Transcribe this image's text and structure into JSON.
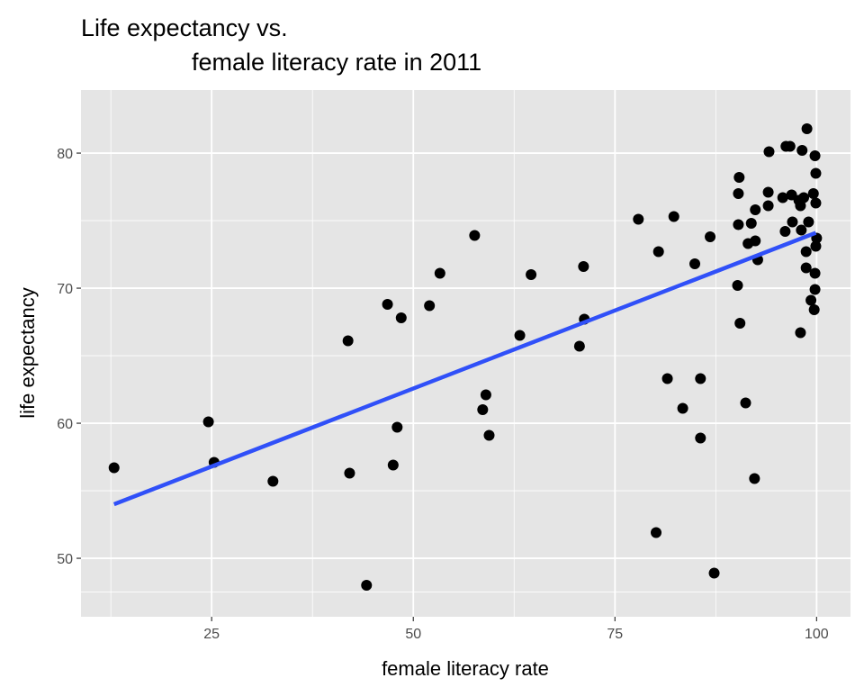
{
  "chart_data": {
    "type": "scatter",
    "title_line1": "Life expectancy vs.",
    "title_line2": "female literacy rate in 2011",
    "xlabel": "female literacy rate",
    "ylabel": "life expectancy",
    "xlim": [
      8.8,
      104.2
    ],
    "ylim": [
      45.67,
      84.67
    ],
    "xticks": [
      25,
      50,
      75,
      100
    ],
    "yticks": [
      50,
      60,
      70,
      80
    ],
    "xminor": [
      12.5,
      37.5,
      62.5,
      87.5
    ],
    "yminor": [
      47.5,
      55,
      65,
      75
    ],
    "grid": true,
    "colors": {
      "panel": "#e5e5e5",
      "grid": "#ffffff",
      "point": "#000000",
      "fit": "#3050f8"
    },
    "fit": {
      "type": "linear",
      "x": [
        12.9,
        99.9
      ],
      "y": [
        54.0,
        74.1
      ]
    },
    "points": [
      [
        12.9,
        56.7
      ],
      [
        24.6,
        60.1
      ],
      [
        25.3,
        57.1
      ],
      [
        32.6,
        55.7
      ],
      [
        41.9,
        66.1
      ],
      [
        42.1,
        56.3
      ],
      [
        44.2,
        48.0
      ],
      [
        46.8,
        68.8
      ],
      [
        47.5,
        56.9
      ],
      [
        48.0,
        59.7
      ],
      [
        48.5,
        67.8
      ],
      [
        52.0,
        68.7
      ],
      [
        53.3,
        71.1
      ],
      [
        57.6,
        73.9
      ],
      [
        58.6,
        61.0
      ],
      [
        59.0,
        62.1
      ],
      [
        59.4,
        59.1
      ],
      [
        63.2,
        66.5
      ],
      [
        64.6,
        71.0
      ],
      [
        70.6,
        65.7
      ],
      [
        71.1,
        71.6
      ],
      [
        71.2,
        67.7
      ],
      [
        77.9,
        75.1
      ],
      [
        80.4,
        72.7
      ],
      [
        80.1,
        51.9
      ],
      [
        81.5,
        63.3
      ],
      [
        82.3,
        75.3
      ],
      [
        83.4,
        61.1
      ],
      [
        84.9,
        71.8
      ],
      [
        85.6,
        63.3
      ],
      [
        85.6,
        58.9
      ],
      [
        86.8,
        73.8
      ],
      [
        87.3,
        48.9
      ],
      [
        91.2,
        61.5
      ],
      [
        92.3,
        55.9
      ],
      [
        98.8,
        81.8
      ],
      [
        96.2,
        80.5
      ],
      [
        96.7,
        80.5
      ],
      [
        98.2,
        80.2
      ],
      [
        94.1,
        80.1
      ],
      [
        99.8,
        79.8
      ],
      [
        99.9,
        78.5
      ],
      [
        90.4,
        78.2
      ],
      [
        90.3,
        77.0
      ],
      [
        94.0,
        77.1
      ],
      [
        94.0,
        76.1
      ],
      [
        95.8,
        76.7
      ],
      [
        96.9,
        76.9
      ],
      [
        97.8,
        76.5
      ],
      [
        98.4,
        76.7
      ],
      [
        99.6,
        77.0
      ],
      [
        99.9,
        76.3
      ],
      [
        98.0,
        76.1
      ],
      [
        92.4,
        75.8
      ],
      [
        90.3,
        74.7
      ],
      [
        91.9,
        74.8
      ],
      [
        97.0,
        74.9
      ],
      [
        99.0,
        74.9
      ],
      [
        96.1,
        74.2
      ],
      [
        98.1,
        74.3
      ],
      [
        91.5,
        73.3
      ],
      [
        92.4,
        73.5
      ],
      [
        100.0,
        73.7
      ],
      [
        98.7,
        72.7
      ],
      [
        99.9,
        73.1
      ],
      [
        92.7,
        72.1
      ],
      [
        98.7,
        71.5
      ],
      [
        99.8,
        71.1
      ],
      [
        90.2,
        70.2
      ],
      [
        99.8,
        69.9
      ],
      [
        99.3,
        69.1
      ],
      [
        99.7,
        68.4
      ],
      [
        90.5,
        67.4
      ],
      [
        98.0,
        66.7
      ]
    ]
  }
}
